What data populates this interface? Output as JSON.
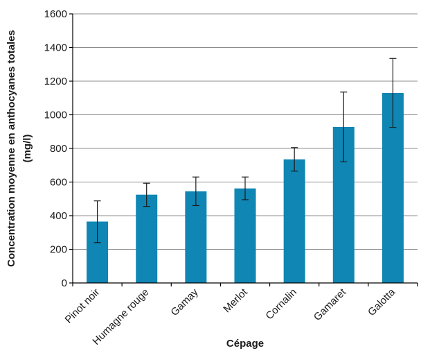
{
  "chart_data": {
    "type": "bar",
    "categories": [
      "Pinot noir",
      "Humagne rouge",
      "Gamay",
      "Merlot",
      "Cornalin",
      "Gamaret",
      "Galotta"
    ],
    "values": [
      365,
      525,
      545,
      562,
      735,
      928,
      1130
    ],
    "error_low": [
      240,
      455,
      460,
      495,
      665,
      720,
      925
    ],
    "error_high": [
      488,
      593,
      630,
      630,
      805,
      1135,
      1335
    ],
    "title": "",
    "xlabel": "Cépage",
    "ylabel_line1": "Concentration moyenne en anthocyanes totales",
    "ylabel_line2": "(mg/l)",
    "ylim": [
      0,
      1600
    ],
    "yticks": [
      "0",
      "200",
      "400",
      "600",
      "800",
      "1000",
      "1200",
      "1400",
      "1600"
    ],
    "grid": true,
    "legend": "none",
    "bar_color": "#0f86b3"
  }
}
